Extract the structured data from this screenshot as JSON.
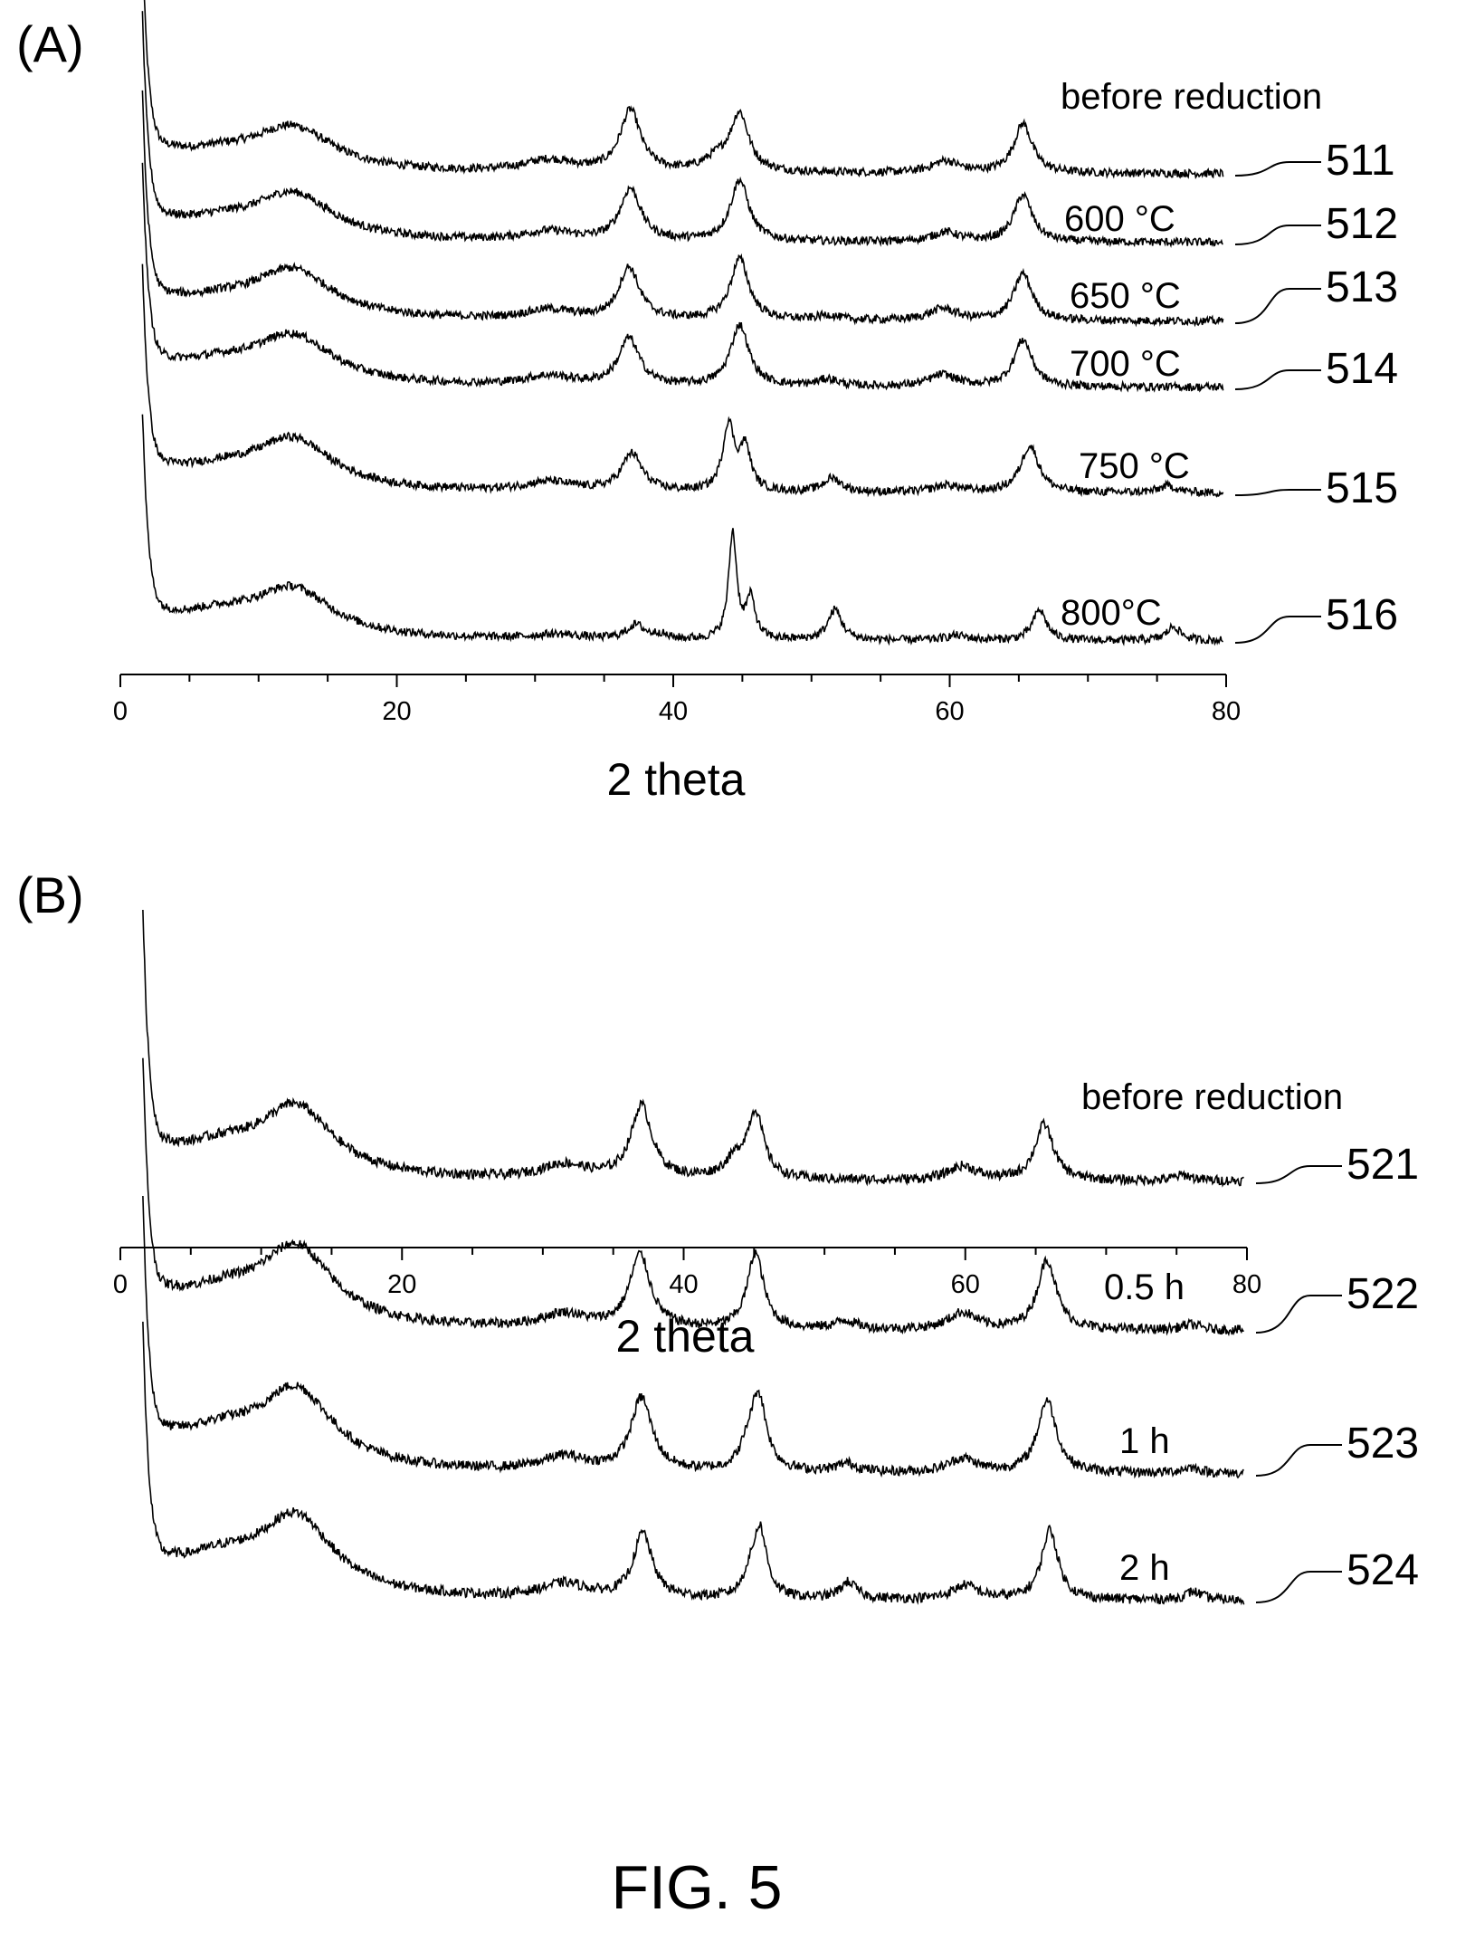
{
  "figure_caption": "FIG. 5",
  "chart_data": [
    {
      "panel": "(A)",
      "type": "line",
      "xlabel": "2 theta",
      "ylabel": "",
      "xlim": [
        0,
        80
      ],
      "xticks": [
        0,
        20,
        40,
        60,
        80
      ],
      "yticks_shown": false,
      "grid": false,
      "legend": "none; each curve labelled inline with a reference number at its right end",
      "series": [
        {
          "ref": "511",
          "label": "before reduction",
          "offset": 0.98,
          "label_x": 69,
          "peaks": [
            [
              3.5,
              0.05,
              1.8,
              0.2
            ],
            [
              12.5,
              0.18,
              3.5,
              0.3
            ],
            [
              7.0,
              0.07,
              4.0,
              0.2
            ],
            [
              31.0,
              0.05,
              2.2,
              0.2
            ],
            [
              36.9,
              0.26,
              0.9,
              0.2
            ],
            [
              43.2,
              0.05,
              1.2,
              0.2
            ],
            [
              44.8,
              0.24,
              0.8,
              0.2
            ],
            [
              59.7,
              0.05,
              1.2,
              0.2
            ],
            [
              65.3,
              0.21,
              0.8,
              0.2
            ]
          ]
        },
        {
          "ref": "512",
          "label": "600 °C",
          "offset": 0.85,
          "label_x": 69,
          "peaks": [
            [
              3.5,
              0.05,
              1.8,
              0.2
            ],
            [
              12.5,
              0.19,
              3.5,
              0.3
            ],
            [
              7.0,
              0.07,
              4.0,
              0.2
            ],
            [
              31.0,
              0.04,
              2.2,
              0.2
            ],
            [
              36.9,
              0.22,
              0.9,
              0.2
            ],
            [
              44.8,
              0.26,
              0.8,
              0.2
            ],
            [
              59.7,
              0.04,
              1.2,
              0.2
            ],
            [
              65.3,
              0.2,
              0.8,
              0.2
            ]
          ]
        },
        {
          "ref": "513",
          "label": "650 °C",
          "offset": 0.72,
          "label_x": 69,
          "peaks": [
            [
              3.5,
              0.05,
              1.8,
              0.2
            ],
            [
              12.5,
              0.2,
              3.5,
              0.3
            ],
            [
              7.0,
              0.07,
              4.0,
              0.2
            ],
            [
              31.0,
              0.04,
              2.2,
              0.2
            ],
            [
              36.8,
              0.22,
              0.9,
              0.2
            ],
            [
              44.8,
              0.26,
              0.8,
              0.2
            ],
            [
              51.2,
              0.02,
              0.9,
              0.2
            ],
            [
              59.5,
              0.05,
              1.2,
              0.2
            ],
            [
              65.3,
              0.2,
              0.8,
              0.2
            ]
          ]
        },
        {
          "ref": "514",
          "label": "700 °C",
          "offset": 0.58,
          "label_x": 69,
          "peaks": [
            [
              3.5,
              0.05,
              1.8,
              0.2
            ],
            [
              12.5,
              0.2,
              3.5,
              0.3
            ],
            [
              7.0,
              0.08,
              4.0,
              0.2
            ],
            [
              31.0,
              0.04,
              2.2,
              0.2
            ],
            [
              36.8,
              0.2,
              0.9,
              0.2
            ],
            [
              44.8,
              0.26,
              0.8,
              0.2
            ],
            [
              51.2,
              0.03,
              0.9,
              0.2
            ],
            [
              59.5,
              0.05,
              1.2,
              0.2
            ],
            [
              65.3,
              0.2,
              0.8,
              0.2
            ]
          ]
        },
        {
          "ref": "515",
          "label": "750 °C",
          "offset": 0.43,
          "label_x": 69,
          "peaks": [
            [
              3.5,
              0.05,
              1.8,
              0.2
            ],
            [
              12.5,
              0.21,
              3.5,
              0.3
            ],
            [
              7.0,
              0.08,
              4.0,
              0.2
            ],
            [
              31.0,
              0.04,
              2.2,
              0.2
            ],
            [
              37.0,
              0.16,
              0.9,
              0.2
            ],
            [
              44.0,
              0.28,
              0.5,
              0.2
            ],
            [
              45.2,
              0.18,
              0.5,
              0.2
            ],
            [
              51.5,
              0.06,
              0.8,
              0.2
            ],
            [
              59.8,
              0.03,
              1.2,
              0.2
            ],
            [
              65.8,
              0.2,
              0.8,
              0.2
            ],
            [
              75.8,
              0.03,
              0.8,
              0.2
            ]
          ]
        },
        {
          "ref": "516",
          "label": "800°C",
          "offset": 0.27,
          "label_x": 69,
          "peaks": [
            [
              3.5,
              0.05,
              1.8,
              0.2
            ],
            [
              12.5,
              0.2,
              3.5,
              0.3
            ],
            [
              7.0,
              0.09,
              4.0,
              0.2
            ],
            [
              31.5,
              0.02,
              2.2,
              0.2
            ],
            [
              37.3,
              0.06,
              0.8,
              0.2
            ],
            [
              39.0,
              0.02,
              0.5,
              0.2
            ],
            [
              44.3,
              0.45,
              0.35,
              0.2
            ],
            [
              45.6,
              0.17,
              0.4,
              0.2
            ],
            [
              51.7,
              0.13,
              0.6,
              0.2
            ],
            [
              60.5,
              0.02,
              1.0,
              0.2
            ],
            [
              66.5,
              0.13,
              0.6,
              0.2
            ],
            [
              76.2,
              0.06,
              0.6,
              0.2
            ]
          ]
        }
      ]
    },
    {
      "panel": "(B)",
      "type": "line",
      "xlabel": "2 theta",
      "ylabel": "",
      "xlim": [
        0,
        80
      ],
      "xticks": [
        0,
        20,
        40,
        60,
        80
      ],
      "yticks_shown": false,
      "grid": false,
      "legend": "none; each curve labelled inline with a reference number at its right end",
      "series": [
        {
          "ref": "521",
          "label": "before reduction",
          "offset": 0.8,
          "label_x": 69,
          "peaks": [
            [
              3.5,
              0.05,
              1.8,
              0.2
            ],
            [
              12.5,
              0.24,
              3.2,
              0.3
            ],
            [
              7.0,
              0.1,
              4.0,
              0.2
            ],
            [
              31.5,
              0.05,
              2.0,
              0.2
            ],
            [
              37.0,
              0.26,
              0.9,
              0.2
            ],
            [
              43.7,
              0.06,
              1.0,
              0.2
            ],
            [
              45.1,
              0.23,
              0.7,
              0.2
            ],
            [
              59.8,
              0.05,
              1.2,
              0.2
            ],
            [
              65.6,
              0.2,
              0.8,
              0.2
            ],
            [
              75.5,
              0.02,
              0.8,
              0.2
            ]
          ]
        },
        {
          "ref": "522",
          "label": "0.5 h",
          "offset": 0.56,
          "label_x": 69,
          "peaks": [
            [
              3.5,
              0.06,
              1.8,
              0.2
            ],
            [
              12.5,
              0.27,
              3.2,
              0.3
            ],
            [
              7.0,
              0.11,
              4.0,
              0.2
            ],
            [
              31.5,
              0.05,
              2.0,
              0.2
            ],
            [
              36.9,
              0.26,
              0.9,
              0.2
            ],
            [
              45.1,
              0.27,
              0.7,
              0.2
            ],
            [
              51.5,
              0.03,
              0.9,
              0.2
            ],
            [
              59.8,
              0.06,
              1.2,
              0.2
            ],
            [
              65.8,
              0.25,
              0.8,
              0.2
            ],
            [
              76.0,
              0.02,
              0.8,
              0.2
            ]
          ]
        },
        {
          "ref": "523",
          "label": "1 h",
          "offset": 0.36,
          "label_x": 69,
          "peaks": [
            [
              3.5,
              0.06,
              1.8,
              0.2
            ],
            [
              12.5,
              0.27,
              3.2,
              0.3
            ],
            [
              7.0,
              0.12,
              4.0,
              0.2
            ],
            [
              31.5,
              0.05,
              2.0,
              0.2
            ],
            [
              37.0,
              0.26,
              0.9,
              0.2
            ],
            [
              44.5,
              0.05,
              0.6,
              0.2
            ],
            [
              45.3,
              0.27,
              0.7,
              0.2
            ],
            [
              51.6,
              0.03,
              0.9,
              0.2
            ],
            [
              59.8,
              0.05,
              1.2,
              0.2
            ],
            [
              65.8,
              0.26,
              0.8,
              0.2
            ],
            [
              76.0,
              0.02,
              0.8,
              0.2
            ]
          ]
        },
        {
          "ref": "524",
          "label": "2 h",
          "offset": 0.15,
          "label_x": 69,
          "peaks": [
            [
              3.5,
              0.06,
              1.8,
              0.2
            ],
            [
              12.5,
              0.27,
              3.2,
              0.3
            ],
            [
              7.0,
              0.12,
              4.0,
              0.2
            ],
            [
              31.5,
              0.05,
              2.0,
              0.2
            ],
            [
              37.1,
              0.23,
              0.8,
              0.2
            ],
            [
              44.6,
              0.05,
              0.5,
              0.2
            ],
            [
              45.4,
              0.25,
              0.6,
              0.2
            ],
            [
              51.7,
              0.06,
              0.7,
              0.2
            ],
            [
              60.0,
              0.05,
              1.1,
              0.2
            ],
            [
              66.0,
              0.25,
              0.7,
              0.2
            ],
            [
              76.2,
              0.03,
              0.7,
              0.2
            ]
          ]
        }
      ]
    }
  ]
}
